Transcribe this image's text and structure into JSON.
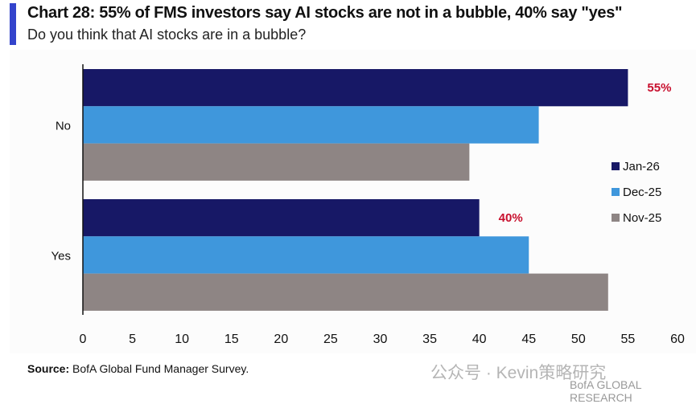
{
  "header": {
    "title": "Chart 28: 55% of FMS investors say AI stocks are not in a bubble, 40% say \"yes\"",
    "subtitle": "Do you think that AI stocks are in a bubble?"
  },
  "footer": {
    "source_label": "Source:",
    "source_text": " BofA Global Fund Manager Survey.",
    "watermark": "公众号 · Kevin策略研究",
    "brand": "BofA GLOBAL RESEARCH"
  },
  "chart_data": {
    "type": "bar",
    "orientation": "horizontal",
    "title": "Chart 28: 55% of FMS investors say AI stocks are not in a bubble, 40% say \"yes\"",
    "subtitle": "Do you think that AI stocks are in a bubble?",
    "categories": [
      "No",
      "Yes"
    ],
    "series": [
      {
        "name": "Jan-26",
        "color": "#171866",
        "values": [
          55,
          40
        ],
        "labels": [
          "55%",
          "40%"
        ]
      },
      {
        "name": "Dec-25",
        "color": "#3f97dc",
        "values": [
          46,
          45
        ]
      },
      {
        "name": "Nov-25",
        "color": "#8e8584",
        "values": [
          39,
          53
        ]
      }
    ],
    "xlim": [
      0,
      60
    ],
    "xticks": [
      "0",
      "5",
      "10",
      "15",
      "20",
      "25",
      "30",
      "35",
      "40",
      "45",
      "50",
      "55",
      "60"
    ],
    "label_color": "#c8102e",
    "legend_position": "right",
    "grid": false
  }
}
